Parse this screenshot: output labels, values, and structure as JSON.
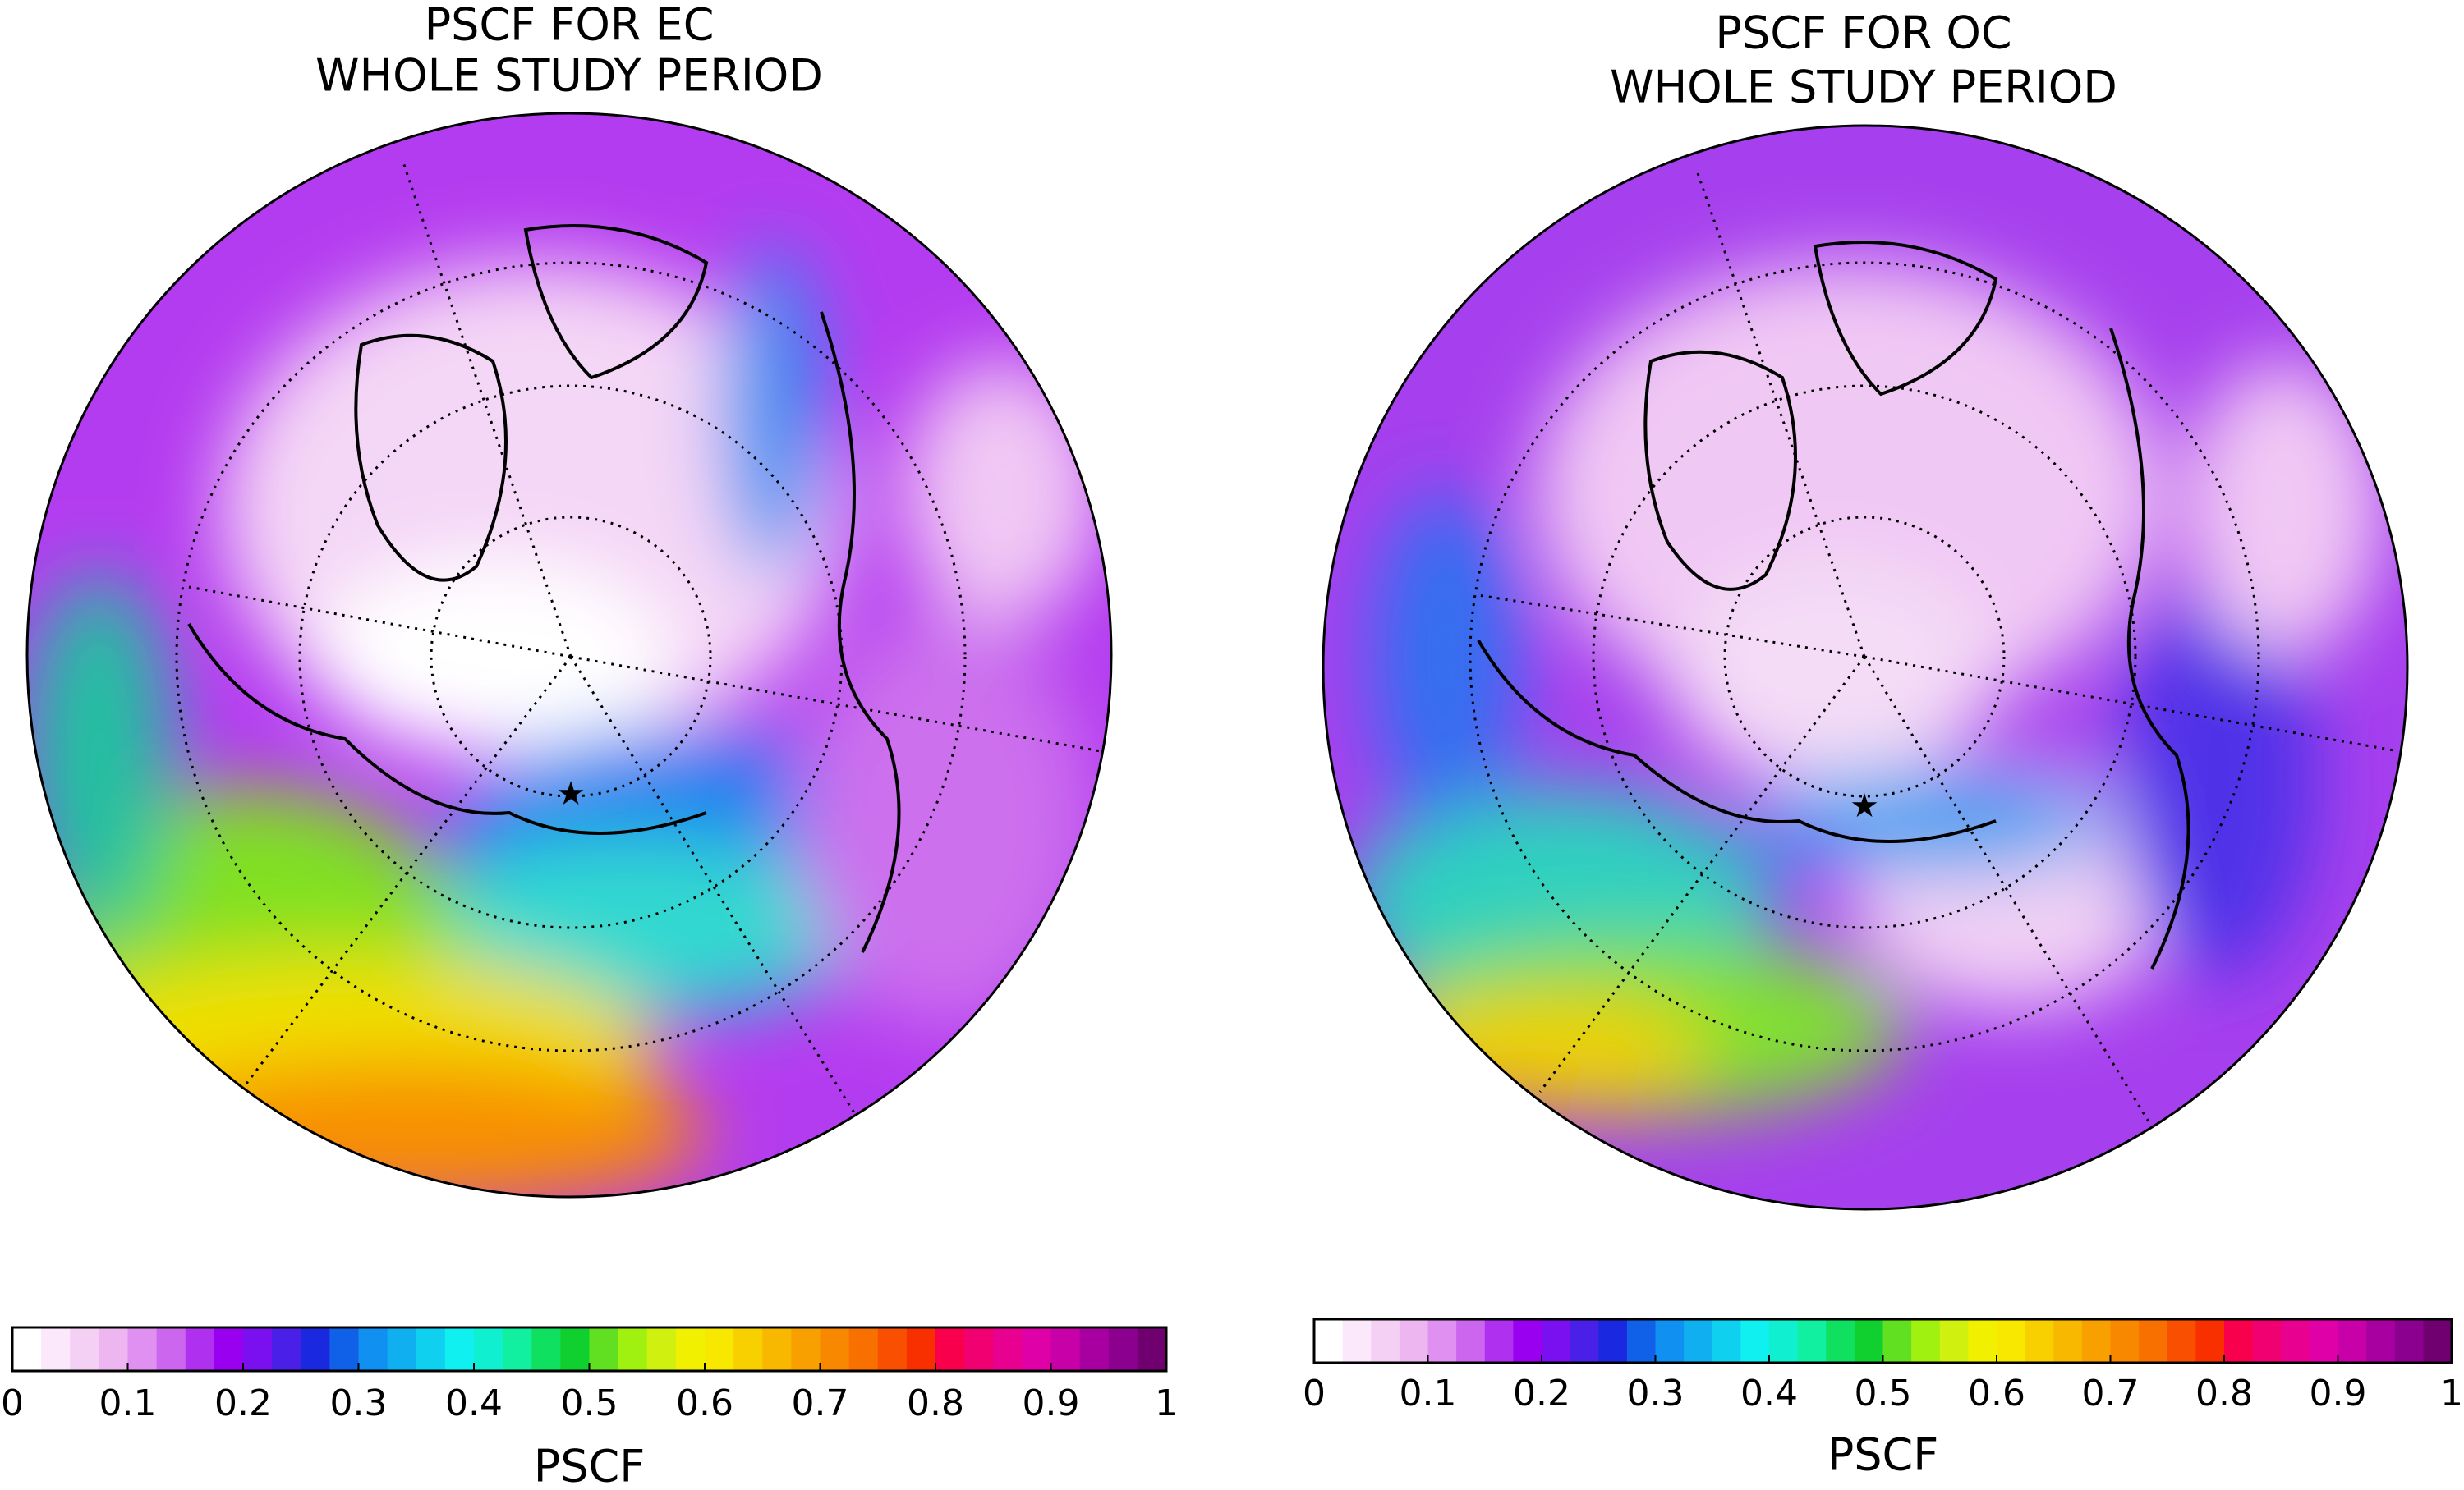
{
  "panels": [
    {
      "title_lines": [
        "PSCF FOR EC",
        "WHOLE STUDY PERIOD"
      ],
      "colorbar": {
        "label": "PSCF",
        "lim": [
          0,
          1
        ],
        "ticks": [
          0,
          0.1,
          0.2,
          0.3,
          0.4,
          0.5,
          0.6,
          0.7,
          0.8,
          0.9,
          1
        ]
      }
    },
    {
      "title_lines": [
        "PSCF FOR OC",
        "WHOLE STUDY PERIOD"
      ],
      "colorbar": {
        "label": "PSCF",
        "lim": [
          0,
          1
        ],
        "ticks": [
          0,
          0.1,
          0.2,
          0.3,
          0.4,
          0.5,
          0.6,
          0.7,
          0.8,
          0.9,
          1
        ]
      }
    }
  ],
  "colormap": [
    "#ffffff",
    "#fbe8fb",
    "#f5d0f5",
    "#eeb6f0",
    "#e090f0",
    "#cc66ee",
    "#b030f0",
    "#9a00f0",
    "#7a10f0",
    "#4a20e8",
    "#1a28e0",
    "#1060e8",
    "#1090f0",
    "#10b0f0",
    "#10d0f0",
    "#10f0f0",
    "#10f0d0",
    "#10f0a0",
    "#10e060",
    "#10d030",
    "#60e020",
    "#a0f010",
    "#d0f010",
    "#f0f000",
    "#f8e800",
    "#f8d000",
    "#f8b800",
    "#f8a000",
    "#f88800",
    "#f87000",
    "#f85000",
    "#f83000",
    "#f8004c",
    "#f00070",
    "#e80090",
    "#e000a8",
    "#c800a8",
    "#a800a0",
    "#8c0090",
    "#700070"
  ]
}
